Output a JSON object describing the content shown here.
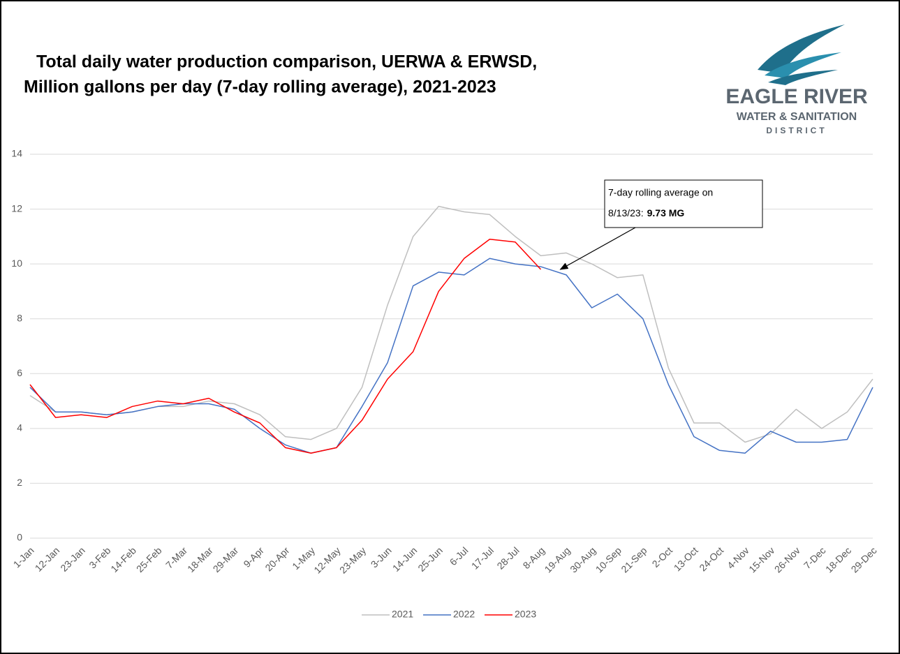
{
  "chart_data": {
    "type": "line",
    "title": "Total daily water production comparison, UERWA & ERWSD,",
    "subtitle": "Million gallons per day (7-day rolling average), 2021-2023",
    "logo": {
      "name": "EAGLE RIVER",
      "line2": "WATER & SANITATION",
      "line3": "DISTRICT"
    },
    "annotation": {
      "line1": "7-day rolling average on",
      "line2": "8/13/23:",
      "value": "9.73 MG"
    },
    "categories": [
      "1-Jan",
      "12-Jan",
      "23-Jan",
      "3-Feb",
      "14-Feb",
      "25-Feb",
      "7-Mar",
      "18-Mar",
      "29-Mar",
      "9-Apr",
      "20-Apr",
      "1-May",
      "12-May",
      "23-May",
      "3-Jun",
      "14-Jun",
      "25-Jun",
      "6-Jul",
      "17-Jul",
      "28-Jul",
      "8-Aug",
      "19-Aug",
      "30-Aug",
      "10-Sep",
      "21-Sep",
      "2-Oct",
      "13-Oct",
      "24-Oct",
      "4-Nov",
      "15-Nov",
      "26-Nov",
      "7-Dec",
      "18-Dec",
      "29-Dec"
    ],
    "series": [
      {
        "name": "2021",
        "color": "#bfbfbf",
        "values": [
          5.2,
          4.6,
          4.6,
          4.5,
          4.6,
          4.8,
          4.8,
          5.0,
          4.9,
          4.5,
          3.7,
          3.6,
          4.0,
          5.5,
          8.5,
          11.0,
          12.1,
          11.9,
          11.8,
          11.0,
          10.3,
          10.4,
          10.0,
          9.5,
          9.6,
          6.2,
          4.2,
          4.2,
          3.5,
          3.8,
          4.7,
          4.0,
          4.6,
          5.8
        ]
      },
      {
        "name": "2022",
        "color": "#4472c4",
        "values": [
          5.5,
          4.6,
          4.6,
          4.5,
          4.6,
          4.8,
          4.9,
          4.9,
          4.7,
          4.0,
          3.4,
          3.1,
          3.3,
          4.8,
          6.4,
          9.2,
          9.7,
          9.6,
          10.2,
          10.0,
          9.9,
          9.6,
          8.4,
          8.9,
          8.0,
          5.6,
          3.7,
          3.2,
          3.1,
          3.9,
          3.5,
          3.5,
          3.6,
          5.5
        ]
      },
      {
        "name": "2023",
        "color": "#ff0000",
        "values": [
          5.6,
          4.4,
          4.5,
          4.4,
          4.8,
          5.0,
          4.9,
          5.1,
          4.6,
          4.2,
          3.3,
          3.1,
          3.3,
          4.3,
          5.8,
          6.8,
          9.0,
          10.2,
          10.9,
          10.8,
          9.8,
          null,
          null,
          null,
          null,
          null,
          null,
          null,
          null,
          null,
          null,
          null,
          null,
          null
        ]
      }
    ],
    "ylim": [
      0,
      14
    ],
    "yticks": [
      0,
      2,
      4,
      6,
      8,
      10,
      12,
      14
    ],
    "grid": true,
    "legend": "bottom"
  }
}
